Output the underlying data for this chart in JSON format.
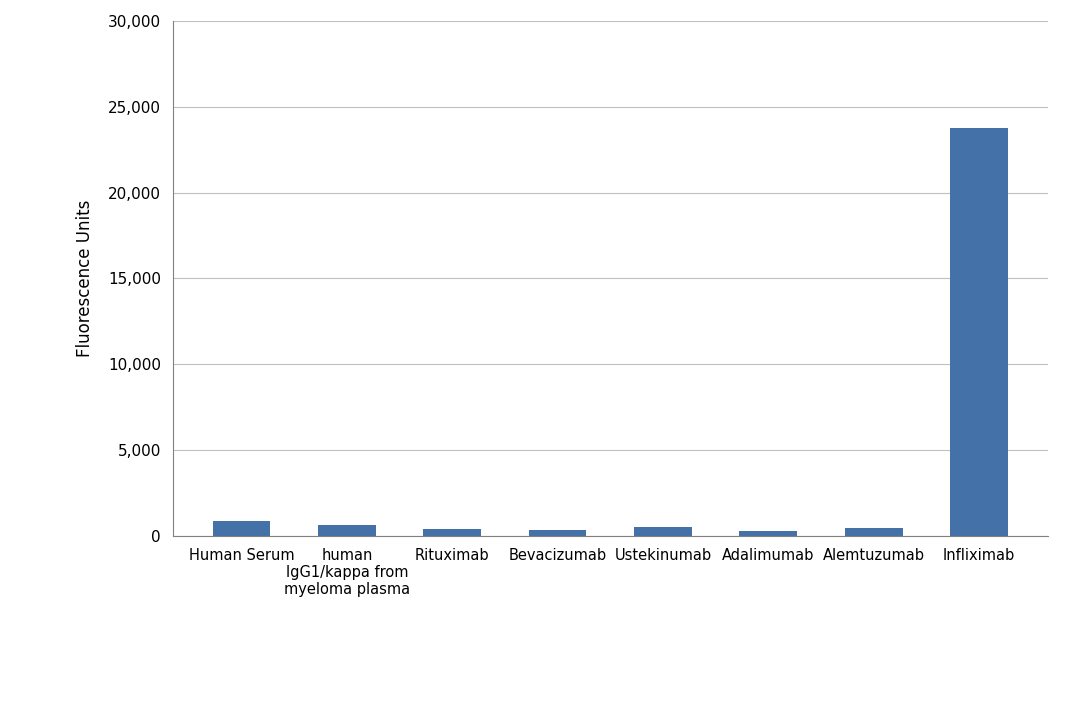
{
  "categories": [
    "Human Serum",
    "human\nIgG1/kappa from\nmyeloma plasma",
    "Rituximab",
    "Bevacizumab",
    "Ustekinumab",
    "Adalimumab",
    "Alemtuzumab",
    "Infliximab"
  ],
  "values": [
    880,
    620,
    380,
    320,
    530,
    290,
    470,
    23800
  ],
  "bar_color": "#4472a8",
  "ylabel": "Fluorescence Units",
  "ylim": [
    0,
    30000
  ],
  "yticks": [
    0,
    5000,
    10000,
    15000,
    20000,
    25000,
    30000
  ],
  "ytick_labels": [
    "0",
    "5,000",
    "10,000",
    "15,000",
    "20,000",
    "25,000",
    "30,000"
  ],
  "background_color": "#ffffff",
  "grid_color": "#c0c0c0",
  "bar_width": 0.55
}
